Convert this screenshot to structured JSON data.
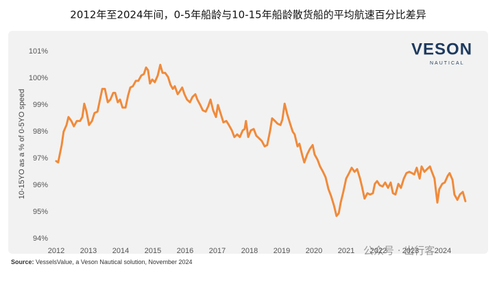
{
  "chart_data": {
    "type": "line",
    "title": "2012年至2024年间，0-5年船龄与10-15年船龄散货船的平均航速百分比差异",
    "y_label": "10-15YO as a % of 0-5YO speed",
    "source_label": "Source:",
    "source": "VesselsValue, a Veson Nautical solution, November 2024",
    "logo": {
      "name": "VESON",
      "sub": "NAUTICAL"
    },
    "watermark": "公众号 · 出行客",
    "color": "#f08a3a",
    "xlim": [
      2012,
      2025
    ],
    "xticks": [
      2012,
      2013,
      2014,
      2015,
      2016,
      2017,
      2018,
      2019,
      2020,
      2021,
      2022,
      2023,
      2024
    ],
    "ylim": [
      94,
      101
    ],
    "yticks": [
      {
        "value": 94,
        "label": "94%"
      },
      {
        "value": 95,
        "label": "95%"
      },
      {
        "value": 96,
        "label": "96%"
      },
      {
        "value": 97,
        "label": "97%"
      },
      {
        "value": 98,
        "label": "98%"
      },
      {
        "value": 99,
        "label": "99%"
      },
      {
        "value": 100,
        "label": "100%"
      },
      {
        "value": 101,
        "label": "101%"
      }
    ],
    "grid": false,
    "x": [
      2012.0,
      2012.06,
      2012.17,
      2012.23,
      2012.32,
      2012.38,
      2012.47,
      2012.55,
      2012.64,
      2012.74,
      2012.81,
      2012.87,
      2012.94,
      2013.02,
      2013.11,
      2013.19,
      2013.28,
      2013.36,
      2013.43,
      2013.51,
      2013.6,
      2013.68,
      2013.77,
      2013.83,
      2013.91,
      2013.98,
      2014.06,
      2014.15,
      2014.23,
      2014.3,
      2014.38,
      2014.47,
      2014.55,
      2014.64,
      2014.72,
      2014.79,
      2014.85,
      2014.91,
      2014.98,
      2015.06,
      2015.15,
      2015.23,
      2015.3,
      2015.38,
      2015.47,
      2015.55,
      2015.62,
      2015.68,
      2015.77,
      2015.83,
      2015.91,
      2015.98,
      2016.06,
      2016.15,
      2016.23,
      2016.32,
      2016.38,
      2016.47,
      2016.55,
      2016.64,
      2016.72,
      2016.79,
      2016.87,
      2016.96,
      2017.02,
      2017.11,
      2017.19,
      2017.28,
      2017.36,
      2017.45,
      2017.53,
      2017.62,
      2017.7,
      2017.79,
      2017.85,
      2017.89,
      2017.96,
      2018.04,
      2018.13,
      2018.21,
      2018.3,
      2018.38,
      2018.47,
      2018.55,
      2018.64,
      2018.7,
      2018.79,
      2018.87,
      2018.96,
      2019.02,
      2019.09,
      2019.17,
      2019.26,
      2019.34,
      2019.4,
      2019.49,
      2019.55,
      2019.64,
      2019.7,
      2019.79,
      2019.87,
      2019.96,
      2020.02,
      2020.11,
      2020.19,
      2020.28,
      2020.36,
      2020.45,
      2020.53,
      2020.62,
      2020.7,
      2020.77,
      2020.83,
      2020.91,
      2021.0,
      2021.09,
      2021.17,
      2021.26,
      2021.34,
      2021.43,
      2021.49,
      2021.57,
      2021.66,
      2021.74,
      2021.83,
      2021.89,
      2021.96,
      2022.04,
      2022.13,
      2022.21,
      2022.3,
      2022.38,
      2022.45,
      2022.53,
      2022.62,
      2022.7,
      2022.79,
      2022.87,
      2022.96,
      2023.04,
      2023.11,
      2023.19,
      2023.28,
      2023.34,
      2023.43,
      2023.51,
      2023.6,
      2023.66,
      2023.74,
      2023.83,
      2023.89,
      2023.98,
      2024.06,
      2024.15,
      2024.21,
      2024.3,
      2024.36,
      2024.45,
      2024.53,
      2024.62,
      2024.7
    ],
    "values": [
      96.9,
      96.85,
      97.5,
      98.0,
      98.25,
      98.55,
      98.4,
      98.2,
      98.4,
      98.4,
      98.55,
      99.05,
      98.75,
      98.25,
      98.4,
      98.7,
      98.75,
      99.2,
      99.6,
      99.6,
      99.1,
      99.2,
      99.45,
      99.45,
      99.1,
      99.2,
      98.9,
      98.9,
      99.35,
      99.65,
      99.7,
      99.9,
      99.9,
      100.1,
      100.15,
      100.4,
      100.3,
      99.8,
      99.95,
      99.85,
      100.1,
      100.5,
      100.2,
      100.2,
      100.05,
      99.75,
      99.6,
      99.7,
      99.4,
      99.5,
      99.65,
      99.4,
      99.2,
      99.1,
      99.3,
      99.4,
      99.2,
      99.0,
      98.8,
      98.75,
      98.95,
      99.2,
      98.8,
      98.55,
      99.0,
      98.65,
      98.35,
      98.4,
      98.25,
      98.05,
      97.8,
      97.9,
      97.8,
      98.05,
      98.1,
      98.4,
      97.8,
      98.05,
      98.1,
      97.85,
      97.75,
      97.65,
      97.45,
      97.5,
      98.05,
      98.5,
      98.4,
      98.3,
      98.25,
      98.45,
      99.05,
      98.65,
      98.3,
      98.0,
      97.9,
      97.45,
      97.55,
      97.1,
      96.85,
      97.15,
      97.35,
      97.5,
      97.15,
      96.95,
      96.7,
      96.5,
      96.3,
      95.85,
      95.6,
      95.25,
      94.85,
      94.95,
      95.35,
      95.75,
      96.25,
      96.45,
      96.65,
      96.5,
      96.6,
      96.25,
      95.95,
      95.5,
      95.7,
      95.65,
      95.7,
      96.05,
      96.15,
      96.0,
      95.95,
      96.1,
      95.9,
      96.1,
      95.7,
      95.65,
      96.05,
      95.9,
      96.25,
      96.45,
      96.5,
      96.45,
      96.4,
      96.65,
      96.25,
      96.7,
      96.5,
      96.6,
      96.7,
      96.5,
      96.25,
      95.35,
      95.85,
      96.05,
      96.1,
      96.35,
      96.45,
      96.2,
      95.65,
      95.45,
      95.65,
      95.75,
      95.4
    ]
  }
}
